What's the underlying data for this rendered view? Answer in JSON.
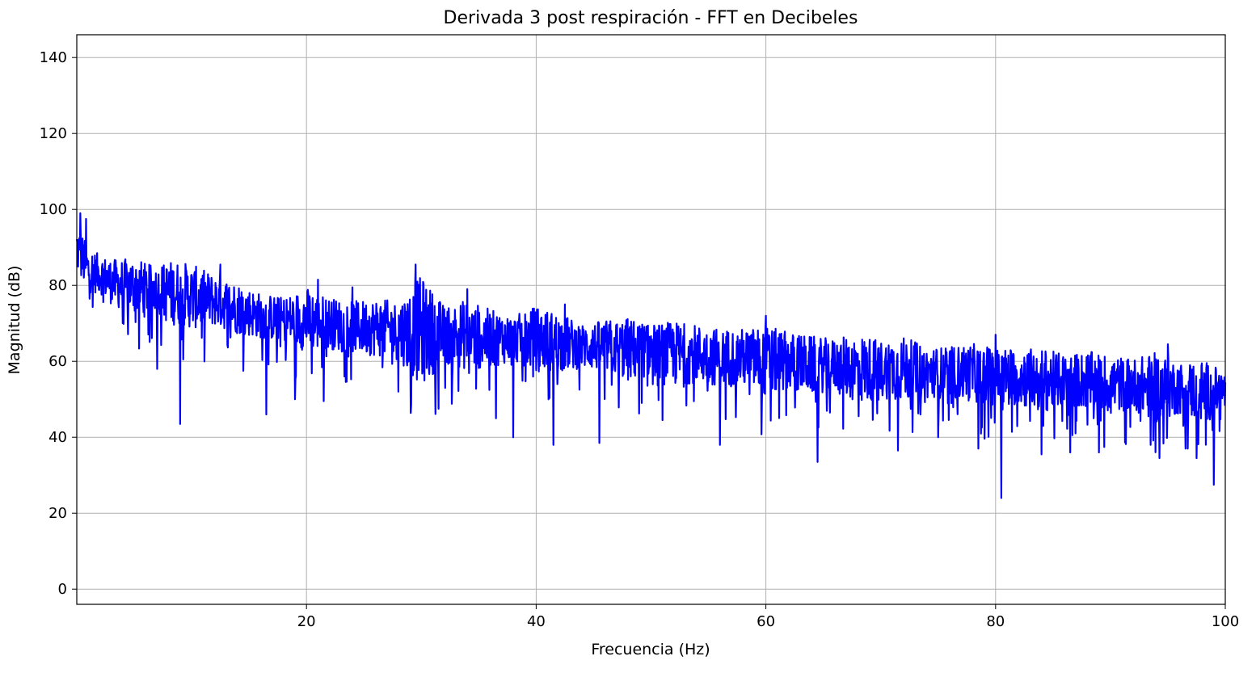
{
  "chart_data": {
    "type": "line",
    "title": "Derivada 3 post respiración - FFT en Decibeles",
    "xlabel": "Frecuencia (Hz)",
    "ylabel": "Magnitud (dB)",
    "xlim": [
      0,
      100
    ],
    "ylim": [
      -4,
      146
    ],
    "xticks": [
      20,
      40,
      60,
      80,
      100
    ],
    "yticks": [
      0,
      20,
      40,
      60,
      80,
      100,
      120,
      140
    ],
    "grid": true,
    "legend": "none",
    "series": [
      {
        "color": "#0000ff",
        "x": [
          0,
          1,
          2,
          3,
          4,
          5,
          6,
          7,
          8,
          9,
          10,
          12,
          14,
          16,
          18,
          20,
          22,
          24,
          26,
          28,
          30,
          32,
          34,
          36,
          38,
          40,
          42,
          44,
          46,
          48,
          50,
          52,
          54,
          56,
          58,
          60,
          62,
          64,
          66,
          68,
          70,
          72,
          74,
          76,
          78,
          80,
          82,
          84,
          86,
          88,
          90,
          92,
          94,
          96,
          98,
          100
        ],
        "y": [
          90,
          84,
          83,
          81,
          80,
          80,
          79,
          79,
          78,
          78,
          77,
          76,
          74,
          72,
          71,
          71,
          70,
          69,
          69,
          68,
          68,
          67,
          67,
          66,
          66,
          66,
          65,
          64,
          64,
          63,
          63,
          62,
          62,
          61,
          61,
          60,
          60,
          59,
          59,
          58,
          58,
          58,
          57,
          57,
          57,
          56,
          56,
          55,
          55,
          55,
          54,
          54,
          53,
          53,
          52,
          52
        ],
        "noise_high": [
          98,
          91,
          89,
          88,
          88,
          89,
          87,
          86,
          88,
          88,
          87,
          84,
          82,
          79,
          78,
          81,
          78,
          77,
          78,
          77,
          85,
          76,
          78,
          75,
          73,
          76,
          74,
          71,
          72,
          73,
          71,
          72,
          71,
          70,
          70,
          71,
          69,
          68,
          67,
          69,
          67,
          68,
          65,
          65,
          66,
          65,
          65,
          65,
          63,
          64,
          63,
          62,
          64,
          61,
          62,
          58
        ],
        "spikes_low": [
          {
            "x": 9.0,
            "y": 43.5
          },
          {
            "x": 7.0,
            "y": 58
          },
          {
            "x": 14.5,
            "y": 57.5
          },
          {
            "x": 16.5,
            "y": 46
          },
          {
            "x": 19.0,
            "y": 50
          },
          {
            "x": 21.5,
            "y": 49.5
          },
          {
            "x": 28.0,
            "y": 52
          },
          {
            "x": 31.5,
            "y": 47.5
          },
          {
            "x": 36.5,
            "y": 45
          },
          {
            "x": 38.0,
            "y": 40
          },
          {
            "x": 41.5,
            "y": 38
          },
          {
            "x": 45.5,
            "y": 38.5
          },
          {
            "x": 51.0,
            "y": 44.5
          },
          {
            "x": 56.0,
            "y": 38
          },
          {
            "x": 64.5,
            "y": 33.5
          },
          {
            "x": 71.5,
            "y": 36.5
          },
          {
            "x": 75.0,
            "y": 40
          },
          {
            "x": 78.5,
            "y": 37
          },
          {
            "x": 80.5,
            "y": 24
          },
          {
            "x": 84.0,
            "y": 35.5
          },
          {
            "x": 86.5,
            "y": 36
          },
          {
            "x": 89.0,
            "y": 36
          },
          {
            "x": 93.5,
            "y": 38
          },
          {
            "x": 97.5,
            "y": 34.5
          },
          {
            "x": 99.0,
            "y": 27.5
          }
        ],
        "spikes_high": [
          {
            "x": 0.3,
            "y": 99
          },
          {
            "x": 0.8,
            "y": 97.5
          },
          {
            "x": 29.5,
            "y": 85.5
          },
          {
            "x": 12.5,
            "y": 85.5
          },
          {
            "x": 21.0,
            "y": 81.5
          },
          {
            "x": 24.0,
            "y": 79.5
          },
          {
            "x": 34.0,
            "y": 79
          },
          {
            "x": 42.5,
            "y": 75
          },
          {
            "x": 60.0,
            "y": 72
          },
          {
            "x": 80.0,
            "y": 67
          },
          {
            "x": 95.0,
            "y": 64.5
          }
        ]
      }
    ]
  }
}
